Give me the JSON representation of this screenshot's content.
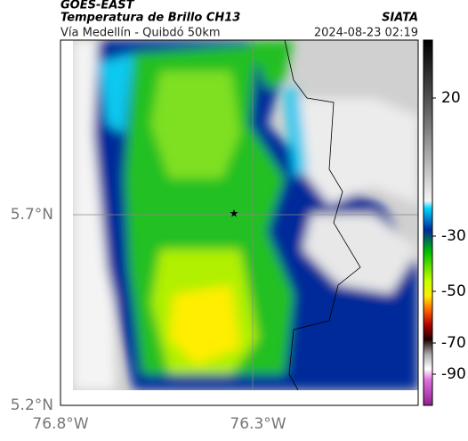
{
  "header": {
    "satellite": "GOES-EAST",
    "product": "Temperatura de Brillo CH13",
    "source": "SIATA",
    "route": "Vía Medellín - Quibdó 50km",
    "datetime": "2024-08-23 02:19"
  },
  "map": {
    "lat_labels": [
      "5.7°N",
      "5.2°N"
    ],
    "lon_labels": [
      "76.8°W",
      "76.3°W"
    ]
  },
  "colorbar": {
    "ticks": [
      20,
      -30,
      -50,
      -70,
      -90
    ]
  }
}
